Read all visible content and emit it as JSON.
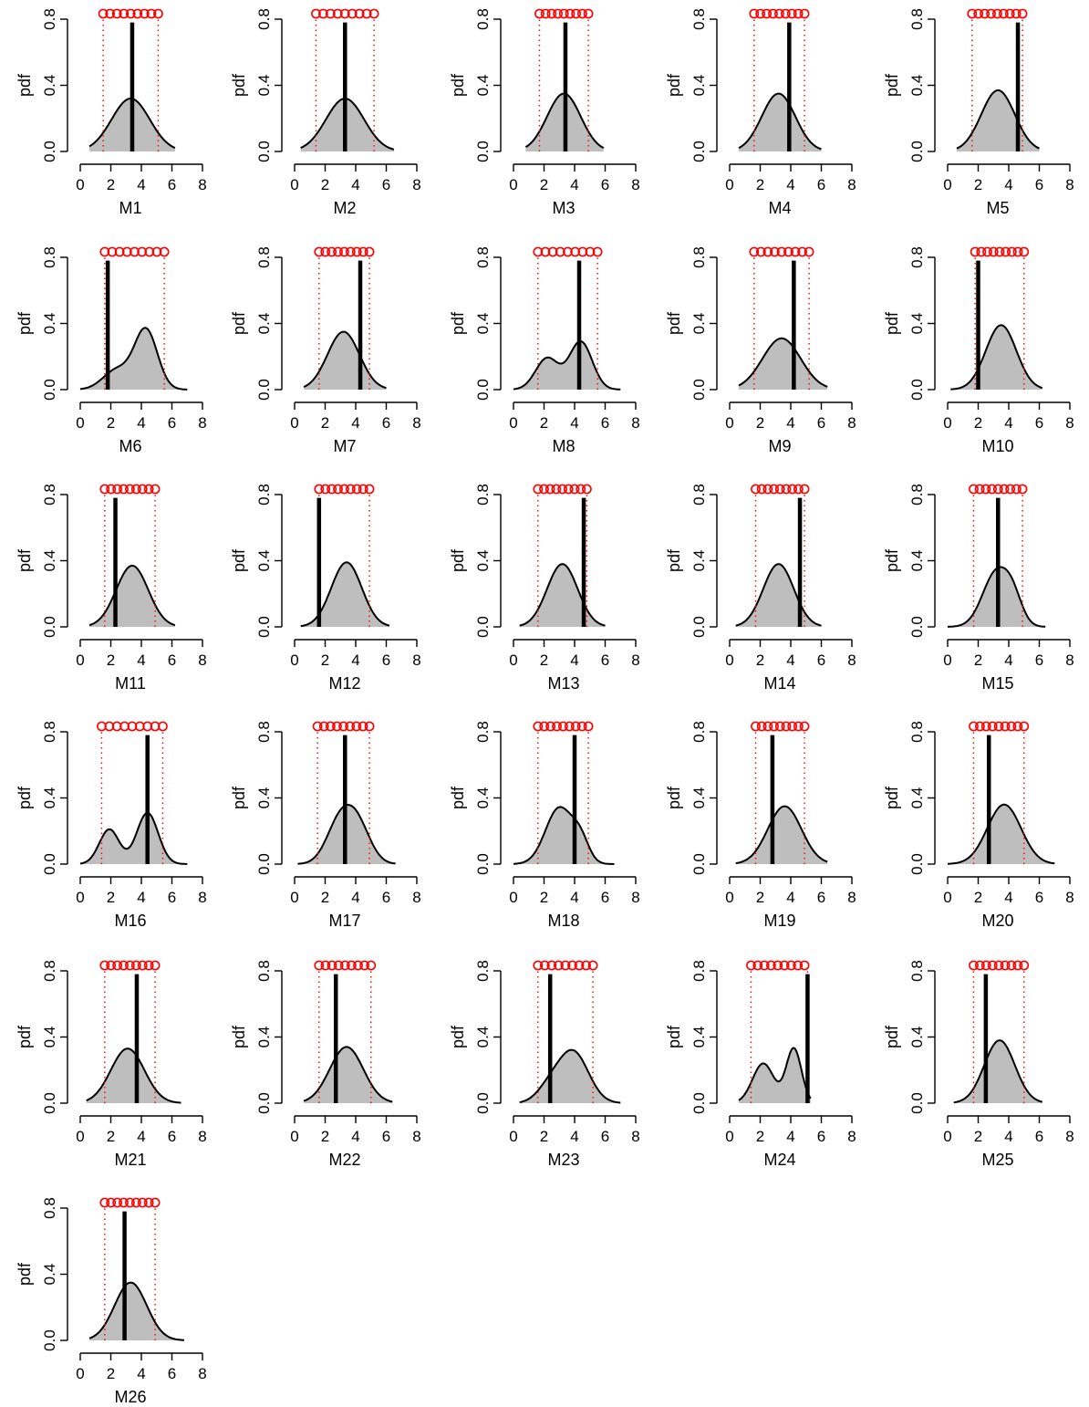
{
  "figure": {
    "panel_labels": [
      "M1",
      "M2",
      "M3",
      "M4",
      "M5",
      "M6",
      "M7",
      "M8",
      "M9",
      "M10",
      "M11",
      "M12",
      "M13",
      "M14",
      "M15",
      "M16",
      "M17",
      "M18",
      "M19",
      "M20",
      "M21",
      "M22",
      "M23",
      "M24",
      "M25",
      "M26"
    ]
  },
  "chart_data": {
    "type": "area",
    "description_of_marks": "density curves (gray fill) with black vertical line and red dotted bounds; red circles on top",
    "colors": {
      "density_fill": "#bebebe",
      "density_line": "#000000",
      "observed_line": "#000000",
      "bounds": "#ff0000",
      "points": "#ff0000"
    },
    "ylabel": "pdf",
    "xlim": [
      0,
      8
    ],
    "ylim": [
      0,
      0.8
    ],
    "xticks": [
      0,
      2,
      4,
      6,
      8
    ],
    "yticks": [
      0.0,
      0.4,
      0.8
    ],
    "ytick_labels": [
      "0.0",
      "0.4",
      "0.8"
    ],
    "grid": false,
    "panels": [
      {
        "xlabel": "M1",
        "peaks": [
          {
            "mu": 3.3,
            "sd": 1.25,
            "h": 0.32
          }
        ],
        "range": [
          0.6,
          6.2
        ],
        "observed": 3.4,
        "bounds": [
          1.5,
          5.1
        ],
        "points_range": [
          1.5,
          5.1
        ]
      },
      {
        "xlabel": "M2",
        "peaks": [
          {
            "mu": 3.3,
            "sd": 1.25,
            "h": 0.32
          }
        ],
        "range": [
          0.4,
          6.5
        ],
        "observed": 3.3,
        "bounds": [
          1.4,
          5.2
        ],
        "points_range": [
          1.4,
          5.2
        ]
      },
      {
        "xlabel": "M3",
        "peaks": [
          {
            "mu": 3.3,
            "sd": 1.1,
            "h": 0.35
          }
        ],
        "range": [
          0.8,
          5.9
        ],
        "observed": 3.4,
        "bounds": [
          1.7,
          4.9
        ],
        "points_range": [
          1.7,
          4.9
        ]
      },
      {
        "xlabel": "M4",
        "peaks": [
          {
            "mu": 3.2,
            "sd": 1.1,
            "h": 0.35
          }
        ],
        "range": [
          0.6,
          6.0
        ],
        "observed": 3.9,
        "bounds": [
          1.6,
          4.9
        ],
        "points_range": [
          1.6,
          4.9
        ]
      },
      {
        "xlabel": "M5",
        "peaks": [
          {
            "mu": 3.3,
            "sd": 1.1,
            "h": 0.37
          }
        ],
        "range": [
          0.6,
          6.0
        ],
        "observed": 4.6,
        "bounds": [
          1.6,
          4.9
        ],
        "points_range": [
          1.6,
          4.9
        ]
      },
      {
        "xlabel": "M6",
        "peaks": [
          {
            "mu": 4.3,
            "sd": 0.75,
            "h": 0.36
          },
          {
            "mu": 2.4,
            "sd": 0.9,
            "h": 0.12
          }
        ],
        "range": [
          0.0,
          7.0
        ],
        "observed": 1.8,
        "bounds": [
          1.6,
          5.5
        ],
        "points_range": [
          1.6,
          5.5
        ]
      },
      {
        "xlabel": "M7",
        "peaks": [
          {
            "mu": 3.2,
            "sd": 1.05,
            "h": 0.35
          }
        ],
        "range": [
          0.6,
          6.0
        ],
        "observed": 4.3,
        "bounds": [
          1.6,
          4.9
        ],
        "points_range": [
          1.6,
          4.9
        ]
      },
      {
        "xlabel": "M8",
        "peaks": [
          {
            "mu": 4.4,
            "sd": 0.75,
            "h": 0.29
          },
          {
            "mu": 2.2,
            "sd": 0.75,
            "h": 0.19
          }
        ],
        "range": [
          0.0,
          7.0
        ],
        "observed": 4.3,
        "bounds": [
          1.6,
          5.5
        ],
        "points_range": [
          1.6,
          5.5
        ]
      },
      {
        "xlabel": "M9",
        "peaks": [
          {
            "mu": 3.4,
            "sd": 1.25,
            "h": 0.31
          }
        ],
        "range": [
          0.6,
          6.4
        ],
        "observed": 4.2,
        "bounds": [
          1.6,
          5.2
        ],
        "points_range": [
          1.6,
          5.2
        ]
      },
      {
        "xlabel": "M10",
        "peaks": [
          {
            "mu": 3.5,
            "sd": 1.0,
            "h": 0.39
          }
        ],
        "range": [
          0.2,
          6.2
        ],
        "observed": 2.0,
        "bounds": [
          1.8,
          5.0
        ],
        "points_range": [
          1.8,
          5.0
        ]
      },
      {
        "xlabel": "M11",
        "peaks": [
          {
            "mu": 3.4,
            "sd": 1.05,
            "h": 0.37
          }
        ],
        "range": [
          0.6,
          6.2
        ],
        "observed": 2.3,
        "bounds": [
          1.6,
          4.9
        ],
        "points_range": [
          1.6,
          4.9
        ]
      },
      {
        "xlabel": "M12",
        "peaks": [
          {
            "mu": 3.4,
            "sd": 1.0,
            "h": 0.39
          }
        ],
        "range": [
          0.4,
          6.2
        ],
        "observed": 1.6,
        "bounds": [
          1.6,
          4.9
        ],
        "points_range": [
          1.6,
          4.9
        ]
      },
      {
        "xlabel": "M13",
        "peaks": [
          {
            "mu": 3.2,
            "sd": 1.0,
            "h": 0.38
          }
        ],
        "range": [
          0.4,
          6.0
        ],
        "observed": 4.6,
        "bounds": [
          1.6,
          4.8
        ],
        "points_range": [
          1.6,
          4.8
        ]
      },
      {
        "xlabel": "M14",
        "peaks": [
          {
            "mu": 3.2,
            "sd": 1.0,
            "h": 0.38
          }
        ],
        "range": [
          0.4,
          6.0
        ],
        "observed": 4.6,
        "bounds": [
          1.7,
          4.9
        ],
        "points_range": [
          1.7,
          4.9
        ]
      },
      {
        "xlabel": "M15",
        "peaks": [
          {
            "mu": 3.2,
            "sd": 0.9,
            "h": 0.33
          },
          {
            "mu": 4.3,
            "sd": 0.6,
            "h": 0.12
          }
        ],
        "range": [
          0.0,
          6.4
        ],
        "observed": 3.3,
        "bounds": [
          1.7,
          4.9
        ],
        "points_range": [
          1.7,
          4.9
        ]
      },
      {
        "xlabel": "M16",
        "peaks": [
          {
            "mu": 4.4,
            "sd": 0.7,
            "h": 0.31
          },
          {
            "mu": 1.9,
            "sd": 0.65,
            "h": 0.21
          }
        ],
        "range": [
          0.0,
          7.0
        ],
        "observed": 4.4,
        "bounds": [
          1.4,
          5.4
        ],
        "points_range": [
          1.4,
          5.4
        ]
      },
      {
        "xlabel": "M17",
        "peaks": [
          {
            "mu": 2.9,
            "sd": 0.85,
            "h": 0.23
          },
          {
            "mu": 4.1,
            "sd": 0.85,
            "h": 0.23
          }
        ],
        "range": [
          0.2,
          6.6
        ],
        "observed": 3.3,
        "bounds": [
          1.5,
          4.9
        ],
        "points_range": [
          1.5,
          4.9
        ]
      },
      {
        "xlabel": "M18",
        "peaks": [
          {
            "mu": 3.0,
            "sd": 0.9,
            "h": 0.34
          },
          {
            "mu": 4.4,
            "sd": 0.55,
            "h": 0.12
          }
        ],
        "range": [
          0.0,
          6.6
        ],
        "observed": 4.0,
        "bounds": [
          1.6,
          4.9
        ],
        "points_range": [
          1.6,
          4.9
        ]
      },
      {
        "xlabel": "M19",
        "peaks": [
          {
            "mu": 3.6,
            "sd": 1.1,
            "h": 0.35
          }
        ],
        "range": [
          0.4,
          6.4
        ],
        "observed": 2.8,
        "bounds": [
          1.7,
          4.9
        ],
        "points_range": [
          1.7,
          4.9
        ]
      },
      {
        "xlabel": "M20",
        "peaks": [
          {
            "mu": 3.7,
            "sd": 1.1,
            "h": 0.36
          }
        ],
        "range": [
          0.0,
          7.0
        ],
        "observed": 2.7,
        "bounds": [
          1.7,
          5.0
        ],
        "points_range": [
          1.7,
          5.0
        ]
      },
      {
        "xlabel": "M21",
        "peaks": [
          {
            "mu": 3.1,
            "sd": 1.1,
            "h": 0.33
          }
        ],
        "range": [
          0.4,
          6.6
        ],
        "observed": 3.7,
        "bounds": [
          1.6,
          4.9
        ],
        "points_range": [
          1.6,
          4.9
        ]
      },
      {
        "xlabel": "M22",
        "peaks": [
          {
            "mu": 3.4,
            "sd": 1.1,
            "h": 0.34
          }
        ],
        "range": [
          0.6,
          6.4
        ],
        "observed": 2.7,
        "bounds": [
          1.6,
          5.0
        ],
        "points_range": [
          1.6,
          5.0
        ]
      },
      {
        "xlabel": "M23",
        "peaks": [
          {
            "mu": 3.9,
            "sd": 1.0,
            "h": 0.31
          },
          {
            "mu": 2.3,
            "sd": 0.8,
            "h": 0.08
          }
        ],
        "range": [
          0.4,
          7.0
        ],
        "observed": 2.4,
        "bounds": [
          1.6,
          5.2
        ],
        "points_range": [
          1.6,
          5.2
        ]
      },
      {
        "xlabel": "M24",
        "peaks": [
          {
            "mu": 4.2,
            "sd": 0.5,
            "h": 0.33
          },
          {
            "mu": 2.2,
            "sd": 0.7,
            "h": 0.24
          }
        ],
        "range": [
          0.6,
          5.3
        ],
        "observed": 5.1,
        "bounds": [
          1.4,
          5.1
        ],
        "points_range": [
          1.4,
          4.9
        ]
      },
      {
        "xlabel": "M25",
        "peaks": [
          {
            "mu": 3.4,
            "sd": 1.0,
            "h": 0.38
          }
        ],
        "range": [
          0.4,
          6.2
        ],
        "observed": 2.5,
        "bounds": [
          1.7,
          5.0
        ],
        "points_range": [
          1.7,
          5.0
        ]
      },
      {
        "xlabel": "M26",
        "peaks": [
          {
            "mu": 3.3,
            "sd": 1.05,
            "h": 0.35
          }
        ],
        "range": [
          0.6,
          6.8
        ],
        "observed": 2.9,
        "bounds": [
          1.6,
          4.9
        ],
        "points_range": [
          1.6,
          4.9
        ]
      }
    ]
  }
}
